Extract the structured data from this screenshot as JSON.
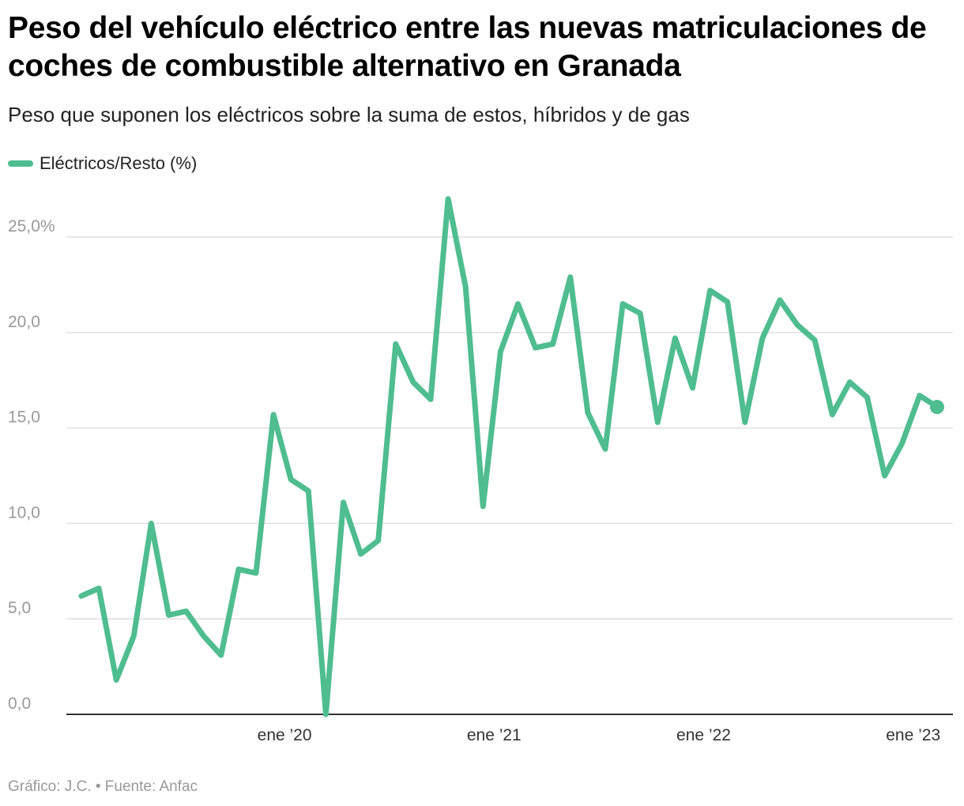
{
  "title": "Peso del vehículo eléctrico entre las nuevas matriculaciones de coches de combustible alternativo en Granada",
  "subtitle": "Peso que suponen los eléctricos sobre la suma de estos, híbridos y de gas",
  "legend": {
    "label": "Eléctricos/Resto (%)",
    "color": "#4fbd8f"
  },
  "footer": "Gráfico: J.C. • Fuente: Anfac",
  "chart_data": {
    "type": "line",
    "title": "Peso del vehículo eléctrico entre las nuevas matriculaciones de coches de combustible alternativo en Granada",
    "xlabel": "",
    "ylabel": "",
    "ylim": [
      0,
      27
    ],
    "grid": true,
    "legend_position": "top-left",
    "y_ticks": [
      {
        "value": 0,
        "label": "0,0"
      },
      {
        "value": 5,
        "label": "5,0"
      },
      {
        "value": 10,
        "label": "10,0"
      },
      {
        "value": 15,
        "label": "15,0"
      },
      {
        "value": 20,
        "label": "20,0"
      },
      {
        "value": 25,
        "label": "25,0%"
      }
    ],
    "x_ticks": [
      {
        "index": 11,
        "label": "ene ’20"
      },
      {
        "index": 23,
        "label": "ene ’21"
      },
      {
        "index": 35,
        "label": "ene ’22"
      },
      {
        "index": 47,
        "label": "ene ’23"
      }
    ],
    "series": [
      {
        "name": "Eléctricos/Resto (%)",
        "color": "#4fbd8f",
        "values": [
          6.2,
          6.6,
          1.8,
          4.1,
          10.0,
          5.2,
          5.4,
          4.1,
          3.1,
          7.6,
          7.4,
          15.7,
          12.3,
          11.7,
          0.0,
          11.1,
          8.4,
          9.1,
          19.4,
          17.4,
          16.5,
          27.0,
          22.4,
          10.9,
          19.0,
          21.5,
          19.2,
          19.4,
          22.9,
          15.8,
          13.9,
          21.5,
          21.0,
          15.3,
          19.7,
          17.1,
          22.2,
          21.6,
          15.3,
          19.7,
          21.7,
          20.4,
          19.6,
          15.7,
          17.4,
          16.6,
          12.5,
          14.2,
          16.7,
          16.1
        ]
      }
    ]
  }
}
